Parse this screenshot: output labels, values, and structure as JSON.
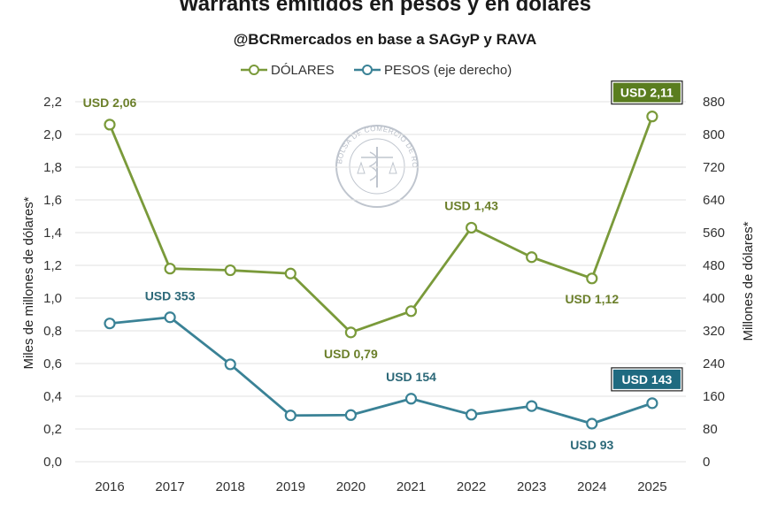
{
  "chart_data": {
    "type": "line",
    "title": "Warrants emitidos en pesos y en dólares",
    "subtitle": "@BCRmercados en base a SAGyP y RAVA",
    "categories": [
      "2016",
      "2017",
      "2018",
      "2019",
      "2020",
      "2021",
      "2022",
      "2023",
      "2024",
      "2025"
    ],
    "y_left": {
      "label": "Miles de millones de dólares*",
      "ticks": [
        "0,0",
        "0,2",
        "0,4",
        "0,6",
        "0,8",
        "1,0",
        "1,2",
        "1,4",
        "1,6",
        "1,8",
        "2,0",
        "2,2"
      ],
      "ylim": [
        0,
        2.2
      ]
    },
    "y_right": {
      "label": "Millones de dólares*",
      "ticks": [
        "0",
        "80",
        "160",
        "240",
        "320",
        "400",
        "480",
        "560",
        "640",
        "720",
        "800",
        "880"
      ],
      "ylim": [
        0,
        880
      ]
    },
    "series": [
      {
        "name": "DÓLARES",
        "axis": "left",
        "color": "#7a9a3a",
        "values": [
          2.06,
          1.18,
          1.17,
          1.15,
          0.79,
          0.92,
          1.43,
          1.25,
          1.12,
          2.11
        ],
        "labels": [
          {
            "index": 0,
            "text": "USD 2,06",
            "boxed": false
          },
          {
            "index": 4,
            "text": "USD 0,79",
            "boxed": false
          },
          {
            "index": 6,
            "text": "USD 1,43",
            "boxed": false
          },
          {
            "index": 8,
            "text": "USD 1,12",
            "boxed": false
          },
          {
            "index": 9,
            "text": "USD 2,11",
            "boxed": true
          }
        ]
      },
      {
        "name": "PESOS (eje derecho)",
        "axis": "right",
        "color": "#3a8296",
        "values": [
          338,
          353,
          238,
          113,
          114,
          154,
          115,
          136,
          93,
          143
        ],
        "labels": [
          {
            "index": 1,
            "text": "USD 353",
            "boxed": false
          },
          {
            "index": 5,
            "text": "USD 154",
            "boxed": false
          },
          {
            "index": 8,
            "text": "USD 93",
            "boxed": false
          },
          {
            "index": 9,
            "text": "USD 143",
            "boxed": true
          }
        ]
      }
    ],
    "box_colors": {
      "DÓLARES": "#5a7d1f",
      "PESOS (eje derecho)": "#1f6a80"
    },
    "watermark": "BOLSA DE COMERCIO DE ROSARIO"
  }
}
